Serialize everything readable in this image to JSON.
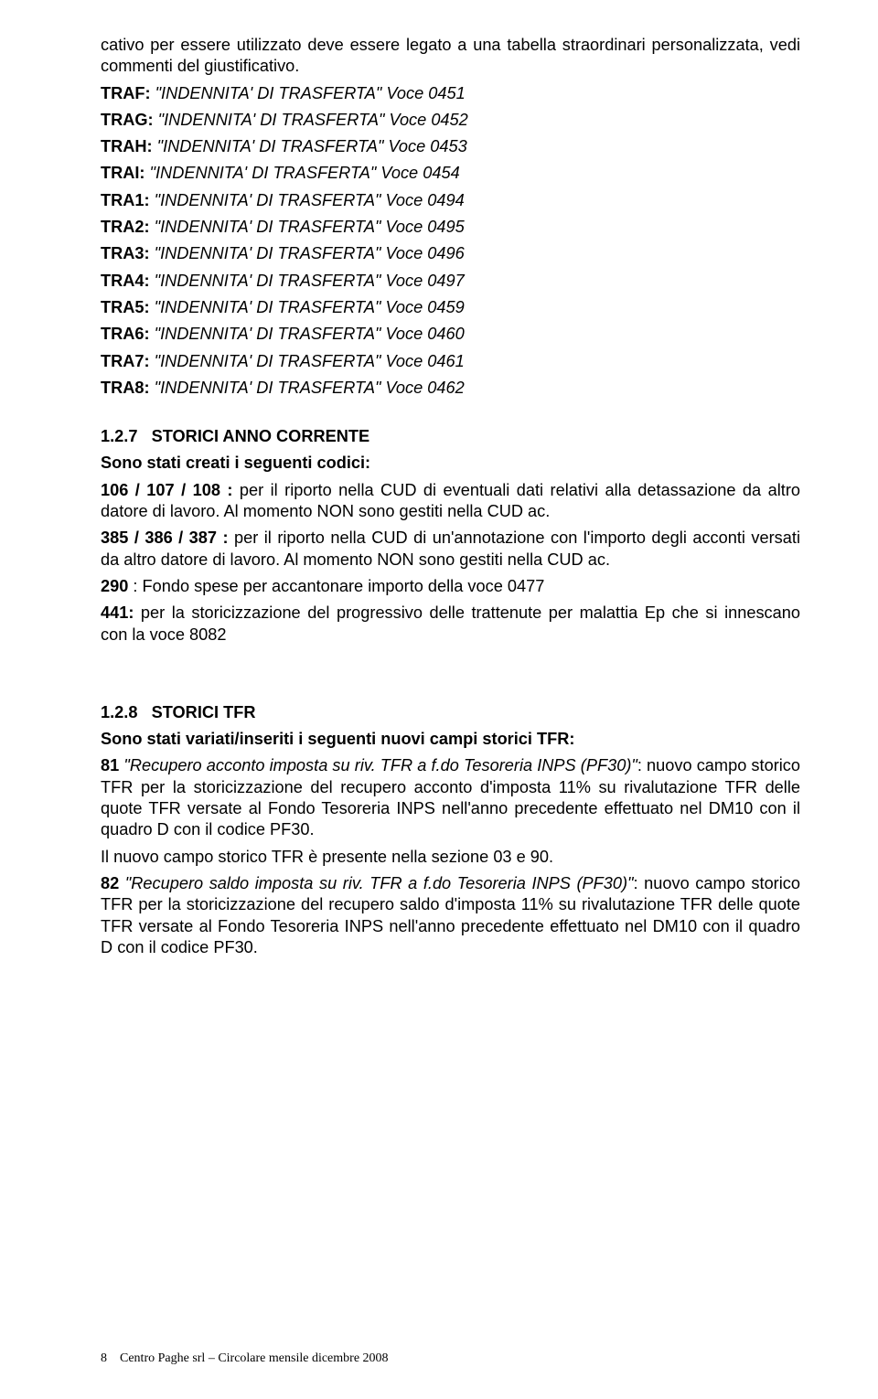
{
  "intro": "cativo per essere utilizzato deve essere legato a una tabella straordinari personalizzata, vedi commenti del giustificativo.",
  "tra_lines": [
    {
      "code": "TRAF",
      "text": "\"INDENNITA' DI TRASFERTA\" Voce 0451"
    },
    {
      "code": "TRAG",
      "text": "\"INDENNITA' DI TRASFERTA\" Voce 0452"
    },
    {
      "code": "TRAH",
      "text": "\"INDENNITA' DI TRASFERTA\" Voce 0453"
    },
    {
      "code": "TRAI",
      "text": "\"INDENNITA' DI TRASFERTA\" Voce 0454"
    },
    {
      "code": "TRA1",
      "text": "\"INDENNITA' DI TRASFERTA\" Voce 0494"
    },
    {
      "code": "TRA2",
      "text": "\"INDENNITA' DI TRASFERTA\" Voce 0495"
    },
    {
      "code": "TRA3",
      "text": "\"INDENNITA' DI TRASFERTA\" Voce 0496"
    },
    {
      "code": "TRA4",
      "text": "\"INDENNITA' DI TRASFERTA\" Voce 0497"
    },
    {
      "code": "TRA5",
      "text": "\"INDENNITA' DI TRASFERTA\" Voce 0459"
    },
    {
      "code": "TRA6",
      "text": "\"INDENNITA' DI TRASFERTA\" Voce 0460"
    },
    {
      "code": "TRA7",
      "text": "\"INDENNITA' DI TRASFERTA\" Voce 0461"
    },
    {
      "code": "TRA8",
      "text": "\"INDENNITA' DI TRASFERTA\" Voce 0462"
    }
  ],
  "s127": {
    "heading_num": "1.2.7",
    "heading_text": "STORICI ANNO CORRENTE",
    "lead": "Sono stati creati i seguenti codici:",
    "p1_code": "106 / 107 / 108 : ",
    "p1_rest": "per il riporto nella CUD di eventuali dati relativi alla detassazione da altro datore di lavoro. Al momento NON sono gestiti nella CUD ac.",
    "p2_code": "385 / 386 / 387 : ",
    "p2_rest": "per il riporto nella CUD di un'annotazione con l'importo degli acconti versati da altro datore di lavoro. Al momento NON sono gestiti nella CUD ac.",
    "p3_code": "290 ",
    "p3_rest": ": Fondo spese per accantonare importo della voce 0477",
    "p4_code": "441:",
    "p4_rest": " per la storicizzazione del progressivo delle trattenute per malattia Ep che si innescano con la voce 8082"
  },
  "s128": {
    "heading_num": "1.2.8",
    "heading_text": "STORICI TFR",
    "lead": "Sono stati variati/inseriti i seguenti nuovi campi storici TFR:",
    "e81_code": "81",
    "e81_quote_a": " \"Recupero acconto imposta su riv. TFR a f.do Tesoreria INPS (PF30)\"",
    "e81_rest": ": nuovo campo storico TFR per la storicizzazione del recupero acconto d'imposta 11% su rivalutazione TFR delle quote TFR versate al Fondo Tesoreria INPS nell'anno precedente effettuato nel DM10 con il quadro D con il codice PF30.",
    "e81_note": "Il nuovo campo storico TFR è presente nella sezione 03 e 90.",
    "e82_code": "82",
    "e82_quote": " \"Recupero saldo imposta su riv. TFR a f.do Tesoreria INPS (PF30)\"",
    "e82_rest": ": nuovo campo storico TFR per la storicizzazione del recupero saldo d'imposta 11% su rivalutazione TFR delle quote TFR versate al Fondo Tesoreria INPS nell'anno precedente effettuato nel DM10 con il quadro D con il codice PF30."
  },
  "footer": {
    "page_num": "8",
    "text": "Centro Paghe srl – Circolare mensile dicembre 2008"
  }
}
